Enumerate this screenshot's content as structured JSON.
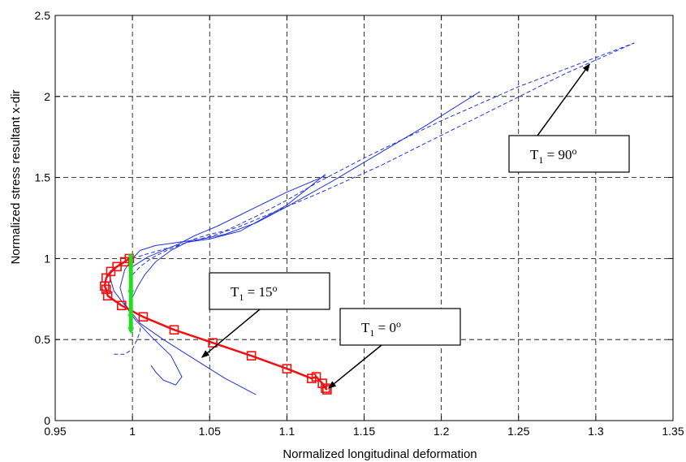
{
  "chart_data": {
    "type": "line",
    "title": "",
    "xlabel": "Normalized longitudinal deformation",
    "ylabel": "Normalized stress resultant x-dir",
    "xlim": [
      0.95,
      1.35
    ],
    "ylim": [
      0,
      2.5
    ],
    "x_ticks": [
      "0.95",
      "1",
      "1.05",
      "1.1",
      "1.15",
      "1.2",
      "1.25",
      "1.3",
      "1.35"
    ],
    "y_ticks": [
      "0",
      "0.5",
      "1",
      "1.5",
      "2",
      "2.5"
    ],
    "grid": true,
    "colors": {
      "blue": "#2233dd",
      "red": "#ee1111",
      "green": "#22dd22"
    },
    "series": [
      {
        "style": "blue-solid",
        "x": [
          1.0,
          0.992,
          0.985,
          0.988,
          0.996,
          1.002,
          1.012,
          1.025,
          1.032,
          1.028,
          1.02,
          1.015,
          1.012
        ],
        "y": [
          1.0,
          0.97,
          0.9,
          0.8,
          0.7,
          0.62,
          0.52,
          0.4,
          0.27,
          0.22,
          0.25,
          0.3,
          0.34
        ]
      },
      {
        "style": "blue-solid",
        "x": [
          1.0,
          0.995,
          0.992,
          0.995,
          1.005,
          1.02,
          1.04,
          1.06,
          1.08
        ],
        "y": [
          1.0,
          0.93,
          0.82,
          0.72,
          0.6,
          0.5,
          0.38,
          0.26,
          0.16
        ]
      },
      {
        "style": "blue-solid",
        "x": [
          1.0,
          1.005,
          1.015,
          1.03,
          1.045,
          1.06,
          1.08,
          1.1,
          1.13,
          1.16,
          1.19,
          1.225
        ],
        "y": [
          1.0,
          1.05,
          1.08,
          1.1,
          1.12,
          1.15,
          1.22,
          1.32,
          1.48,
          1.65,
          1.82,
          2.03
        ]
      },
      {
        "style": "blue-solid",
        "x": [
          1.0,
          1.003,
          1.008,
          1.015,
          1.025,
          1.035,
          1.05,
          1.07,
          1.1,
          1.125
        ],
        "y": [
          0.76,
          0.82,
          0.9,
          0.98,
          1.05,
          1.1,
          1.12,
          1.17,
          1.33,
          1.52
        ]
      },
      {
        "style": "blue-solid",
        "x": [
          1.0,
          1.01,
          1.02,
          1.03,
          1.04,
          1.055,
          1.07,
          1.085,
          1.1,
          1.12,
          1.125
        ],
        "y": [
          0.95,
          1.01,
          1.05,
          1.09,
          1.14,
          1.2,
          1.27,
          1.34,
          1.41,
          1.49,
          1.51
        ]
      },
      {
        "style": "blue-dashed",
        "x": [
          1.0,
          1.01,
          1.025,
          1.04,
          1.055,
          1.07,
          1.09,
          1.12,
          1.16,
          1.2,
          1.24,
          1.28,
          1.325
        ],
        "y": [
          1.0,
          1.03,
          1.07,
          1.11,
          1.15,
          1.2,
          1.28,
          1.4,
          1.57,
          1.76,
          1.95,
          2.14,
          2.33
        ]
      },
      {
        "style": "blue-dashed",
        "x": [
          1.0,
          1.005,
          1.012,
          1.02,
          1.03,
          1.04,
          1.05,
          1.06,
          1.08,
          1.1,
          1.12,
          1.15,
          1.2,
          1.25,
          1.3,
          1.325
        ],
        "y": [
          0.9,
          0.95,
          1.0,
          1.04,
          1.08,
          1.12,
          1.15,
          1.17,
          1.26,
          1.36,
          1.47,
          1.62,
          1.85,
          2.06,
          2.24,
          2.33
        ]
      },
      {
        "style": "blue-dashed",
        "x": [
          0.988,
          0.995,
          1.0,
          1.003,
          1.005,
          1.005
        ],
        "y": [
          0.41,
          0.41,
          0.44,
          0.5,
          0.55,
          0.58
        ]
      },
      {
        "style": "red-markers",
        "x": [
          0.998,
          0.995,
          0.99,
          0.986,
          0.983,
          0.982,
          0.983,
          0.984,
          0.993,
          1.007,
          1.027,
          1.052,
          1.077,
          1.1,
          1.116,
          1.119,
          1.123,
          1.125,
          1.126
        ],
        "y": [
          1.0,
          0.98,
          0.95,
          0.92,
          0.88,
          0.83,
          0.81,
          0.77,
          0.71,
          0.64,
          0.56,
          0.48,
          0.4,
          0.32,
          0.26,
          0.27,
          0.23,
          0.2,
          0.19
        ]
      },
      {
        "style": "green-thick",
        "x": [
          0.999,
          0.999,
          0.999,
          0.999
        ],
        "y": [
          1.0,
          0.78,
          0.63,
          0.55
        ]
      }
    ],
    "annotations": [
      {
        "id": "t90",
        "label_main": "T",
        "label_sub": "1",
        "label_eq": " = 90",
        "label_sup": "o",
        "arrow_x": 1.296,
        "arrow_y": 2.2
      },
      {
        "id": "t15",
        "label_main": "T",
        "label_sub": "1",
        "label_eq": " = 15",
        "label_sup": "o",
        "arrow_x": 1.045,
        "arrow_y": 0.39
      },
      {
        "id": "t0",
        "label_main": "T",
        "label_sub": "1",
        "label_eq": " = 0",
        "label_sup": "o",
        "arrow_x": 1.127,
        "arrow_y": 0.2
      }
    ]
  }
}
